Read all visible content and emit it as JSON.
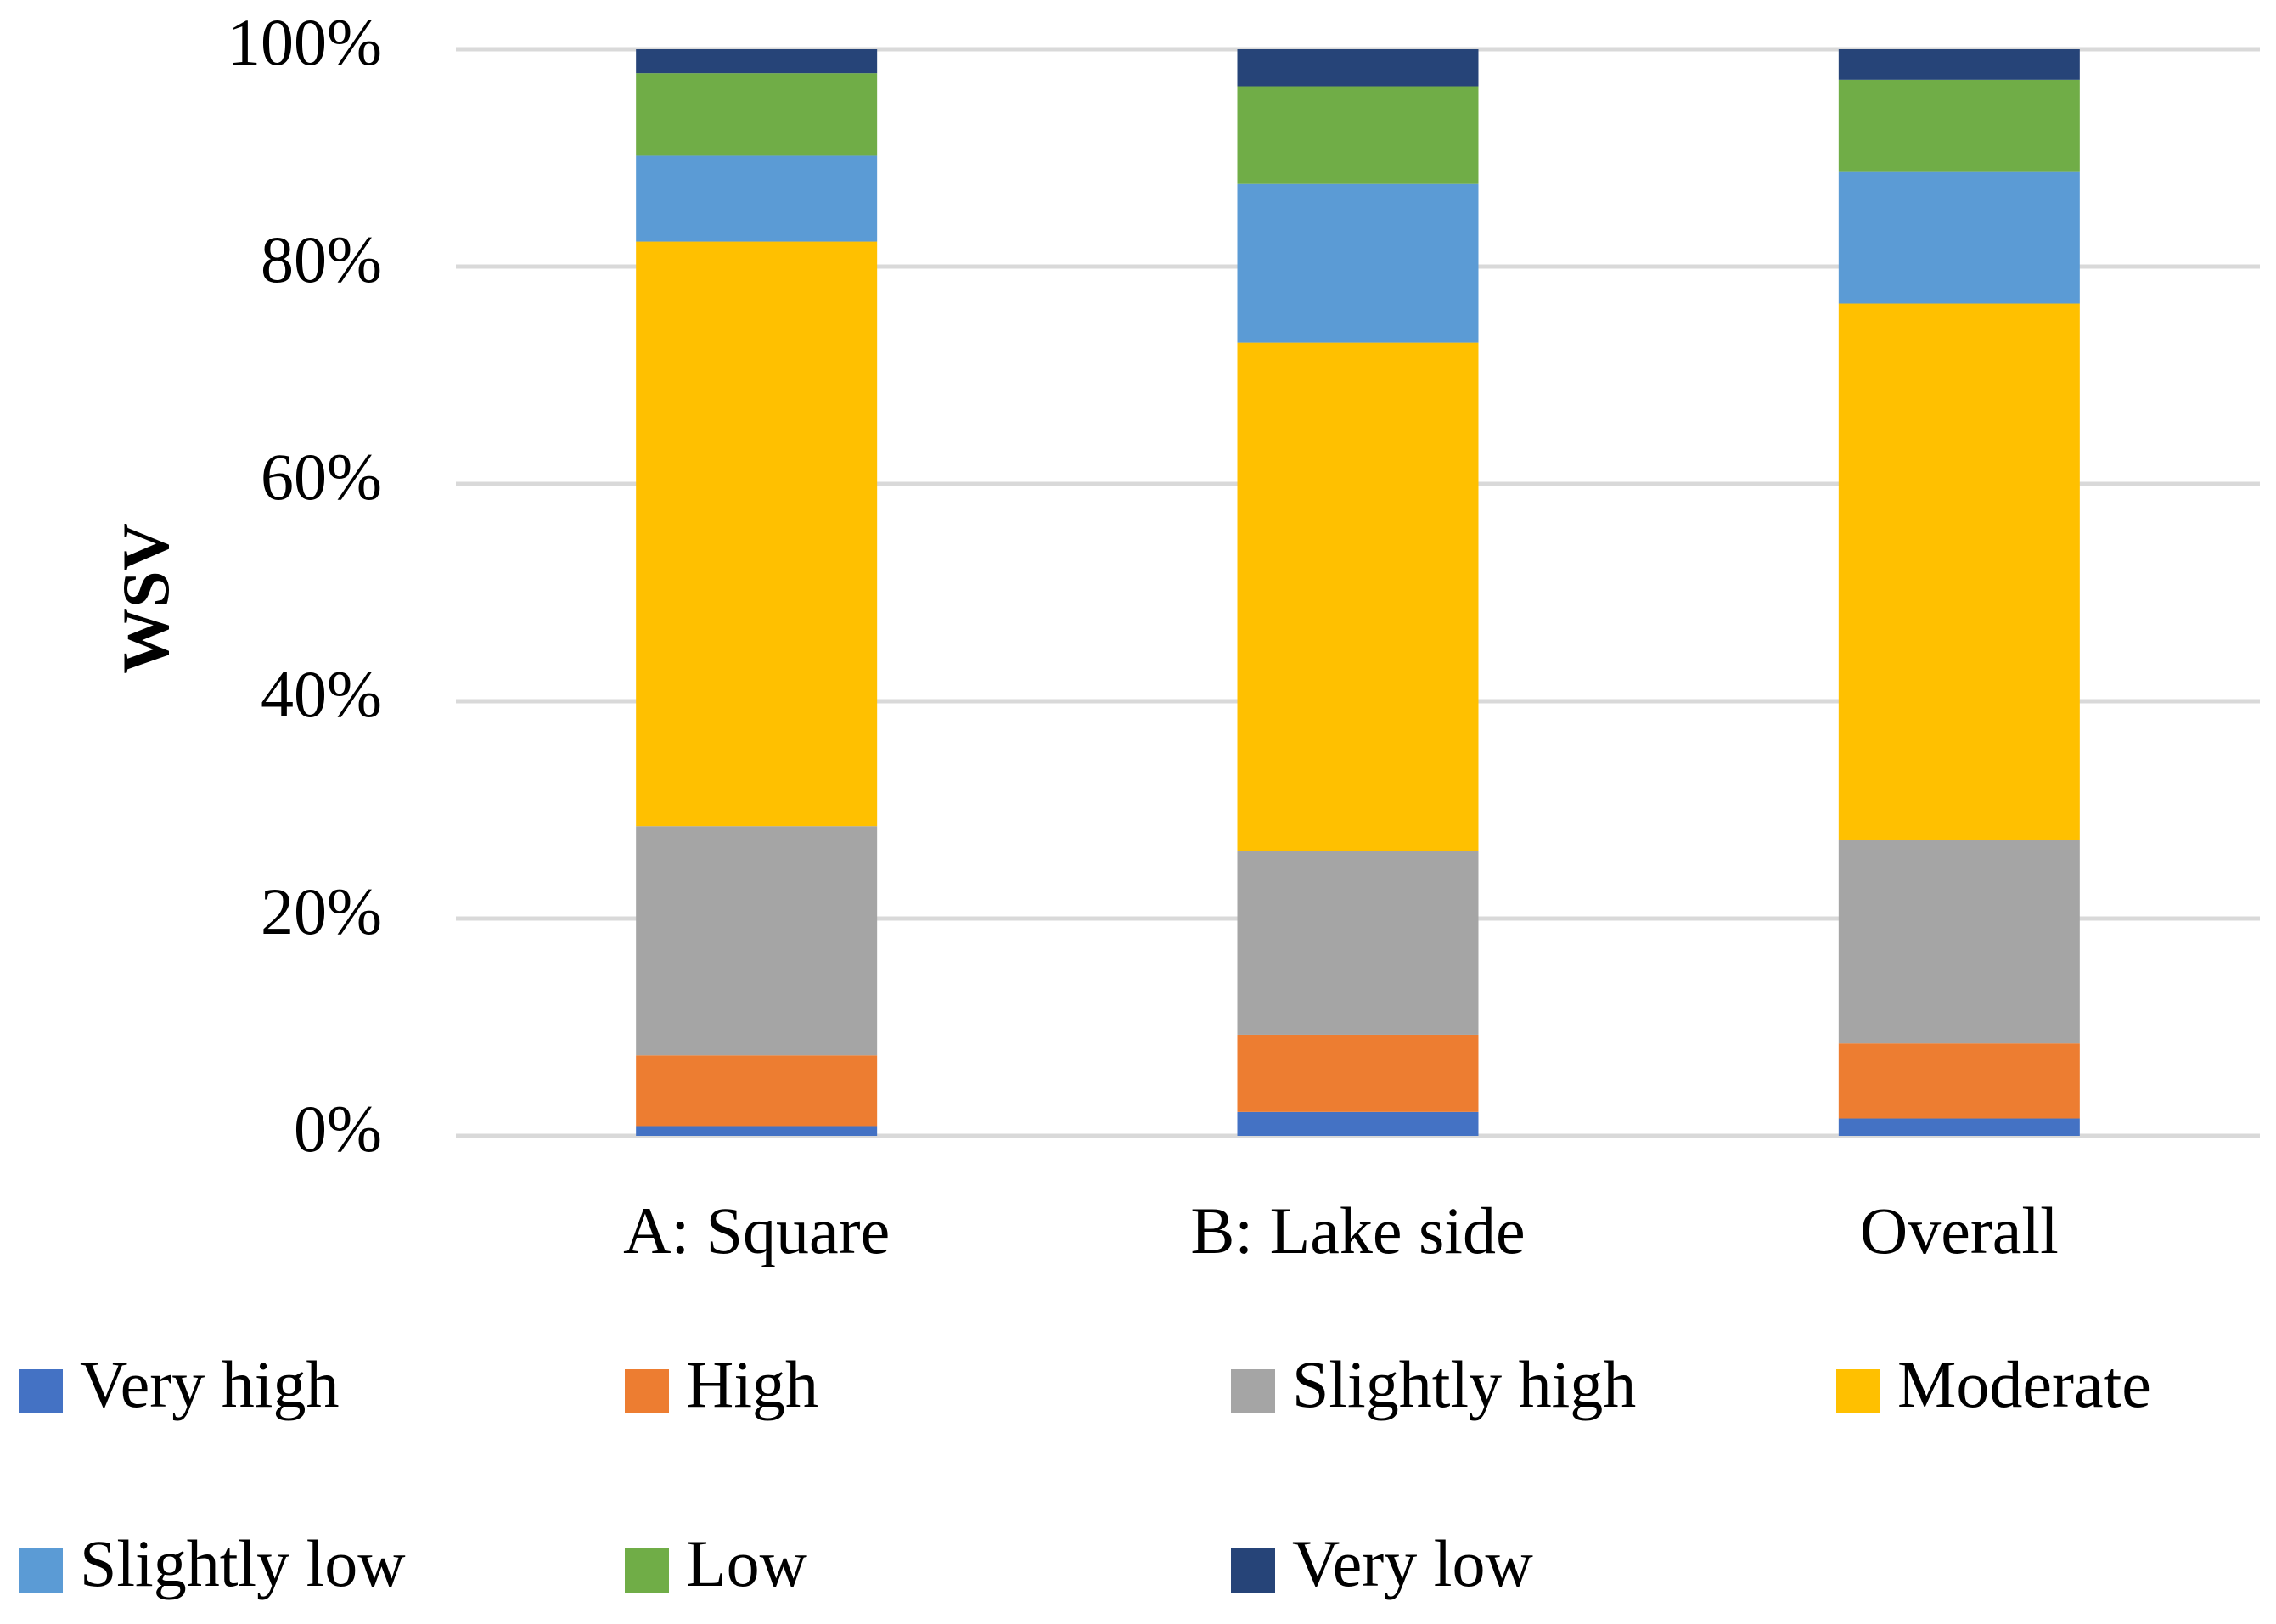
{
  "chart_data": {
    "type": "stacked_bar",
    "y_label": "WSV",
    "categories": [
      "A: Square",
      "B: Lake side",
      "Overall"
    ],
    "series": [
      {
        "name": "Very high",
        "color": "#4472c4",
        "values": [
          0.9,
          2.2,
          1.6
        ]
      },
      {
        "name": "High",
        "color": "#ed7d31",
        "values": [
          6.5,
          7.1,
          6.9
        ]
      },
      {
        "name": "Slightly high",
        "color": "#a5a5a5",
        "values": [
          21.1,
          16.9,
          18.7
        ]
      },
      {
        "name": "Moderate",
        "color": "#ffc000",
        "values": [
          53.8,
          46.8,
          49.4
        ]
      },
      {
        "name": "Slightly low",
        "color": "#5b9bd5",
        "values": [
          7.9,
          14.6,
          12.1
        ]
      },
      {
        "name": "Low",
        "color": "#70ad47",
        "values": [
          7.6,
          9.0,
          8.5
        ]
      },
      {
        "name": "Very low",
        "color": "#264478",
        "values": [
          2.2,
          3.4,
          2.8
        ]
      }
    ],
    "ylim": [
      0,
      100
    ],
    "yticks": [
      {
        "value": 0,
        "label": "0%"
      },
      {
        "value": 20,
        "label": "20%"
      },
      {
        "value": 40,
        "label": "40%"
      },
      {
        "value": 60,
        "label": "60%"
      },
      {
        "value": 80,
        "label": "80%"
      },
      {
        "value": 100,
        "label": "100%"
      }
    ],
    "grid": true,
    "legend": "bottom"
  }
}
